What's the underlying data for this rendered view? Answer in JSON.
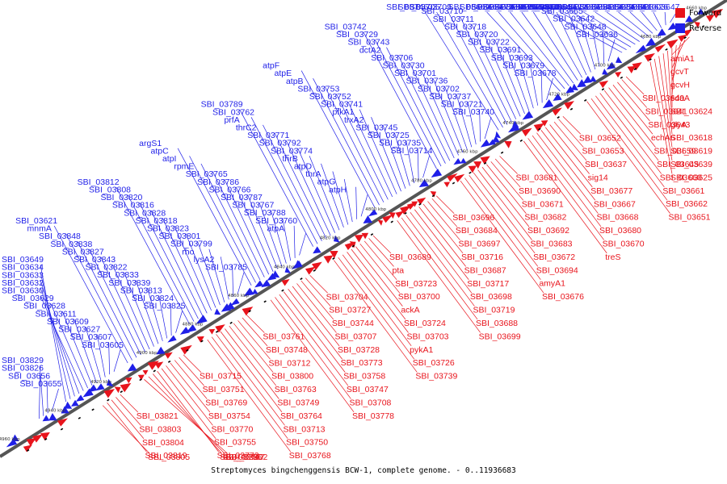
{
  "legend": {
    "forward": "Forward",
    "reverse": "Reverse"
  },
  "colors": {
    "forward": "#e8141c",
    "reverse": "#1f1fe8",
    "backbone": "#555555"
  },
  "caption": "Streptomyces bingchenggensis BCW-1, complete genome. - 0..11936683",
  "kbp_ticks": [
    "4660 kbp",
    "4680 kbp",
    "4700 kbp",
    "4720 kbp",
    "4740 kbp",
    "4760 kbp",
    "4780 kbp",
    "4800 kbp",
    "4820 kbp",
    "4840 kbp",
    "4860 kbp",
    "4880 kbp",
    "4900 kbp",
    "4920 kbp",
    "4940 kbp",
    "4960 kbp"
  ],
  "reverse_genes": [
    "SBI_03647",
    "SBI_03626",
    "SBI_03610",
    "SBI_03638",
    "SBI_03623",
    "SBI_03613",
    "SBI_03654",
    "SBI_03635",
    "SBI_03622",
    "SBI_03646",
    "SBI_03631",
    "SBI_03644",
    "SBI_03636",
    "SBI_03648",
    "SBI_03642",
    "SBI_03665",
    "SBI_03664",
    "SBI_03663",
    "SBI_03650",
    "SBI_03675",
    "SBI_03658",
    "SBI_03673",
    "SBI_03666",
    "SBI_03669",
    "SBI_03678",
    "SBI_03679",
    "SBI_03693",
    "SBI_03691",
    "SBI_03722",
    "SBI_03720",
    "SBI_03718",
    "SBI_03711",
    "SBI_03710",
    "SBI_03709",
    "SBI_03705",
    "SBI_03746",
    "SBI_03740",
    "SBI_03721",
    "SBI_03737",
    "SBI_03702",
    "SBI_03736",
    "SBI_03701",
    "SBI_03730",
    "SBI_03706",
    "dctA2",
    "SBI_03743",
    "SBI_03729",
    "SBI_03742",
    "SBI_03714",
    "SBI_03735",
    "SBI_03725",
    "SBI_03745",
    "trxA2",
    "pfkA1",
    "SBI_03741",
    "SBI_03752",
    "SBI_03753",
    "atpB",
    "atpE",
    "atpF",
    "atpH",
    "atpG",
    "thrA",
    "atpD",
    "thrB",
    "SBI_03774",
    "SBI_03792",
    "SBI_03771",
    "thrC2",
    "prfA",
    "SBI_03762",
    "SBI_03789",
    "atpA",
    "SBI_03760",
    "SBI_03788",
    "SBI_03767",
    "SBI_03787",
    "SBI_03766",
    "SBI_03786",
    "SBI_03765",
    "rpmE",
    "atpI",
    "atpC",
    "argS1",
    "SBI_03785",
    "lysA2",
    "rho",
    "SBI_03799",
    "SBI_03801",
    "SBI_03823",
    "SBI_03818",
    "SBI_03828",
    "SBI_03816",
    "SBI_03820",
    "SBI_03808",
    "SBI_03812",
    "SBI_03825",
    "SBI_03824",
    "SBI_03813",
    "SBI_03839",
    "SBI_03833",
    "SBI_03822",
    "SBI_03843",
    "SBI_03827",
    "SBI_03838",
    "SBI_03848",
    "mnmA",
    "SBI_03621",
    "SBI_03605",
    "SBI_03607",
    "SBI_03627",
    "SBI_03609",
    "SBI_03611",
    "SBI_03628",
    "SBI_03629",
    "SBI_03630",
    "SBI_03632",
    "SBI_03633",
    "SBI_03634",
    "SBI_03649",
    "SBI_03655",
    "SBI_03656",
    "SBI_03826",
    "SBI_03829"
  ],
  "forward_genes": [
    "amiA1",
    "gcvT",
    "gcvH",
    "sdaA",
    "SBI_03624",
    "glyA",
    "SBI_03618",
    "SBI_03619",
    "SBI_03639",
    "SBI_03625",
    "SBI_03640",
    "SBI_03641",
    "SBI_03643",
    "echA6",
    "SBI_03659",
    "SBI_03645",
    "SBI_03660",
    "SBI_03661",
    "SBI_03662",
    "SBI_03651",
    "SBI_03652",
    "SBI_03653",
    "SBI_03637",
    "sig14",
    "SBI_03677",
    "SBI_03667",
    "SBI_03668",
    "SBI_03680",
    "SBI_03670",
    "treS",
    "SBI_03681",
    "SBI_03690",
    "SBI_03671",
    "SBI_03682",
    "SBI_03692",
    "SBI_03683",
    "SBI_03672",
    "SBI_03694",
    "amyA1",
    "SBI_03676",
    "SBI_03696",
    "SBI_03684",
    "SBI_03697",
    "SBI_03716",
    "SBI_03687",
    "SBI_03717",
    "SBI_03698",
    "SBI_03719",
    "SBI_03688",
    "SBI_03699",
    "SBI_03689",
    "pta",
    "SBI_03723",
    "SBI_03700",
    "ackA",
    "SBI_03724",
    "SBI_03703",
    "pykA1",
    "SBI_03726",
    "SBI_03739",
    "SBI_03704",
    "SBI_03727",
    "SBI_03744",
    "SBI_03707",
    "SBI_03728",
    "SBI_03773",
    "SBI_03758",
    "SBI_03747",
    "SBI_03708",
    "SBI_03778",
    "SBI_03761",
    "SBI_03748",
    "SBI_03712",
    "SBI_03800",
    "SBI_03763",
    "SBI_03749",
    "SBI_03764",
    "SBI_03713",
    "SBI_03750",
    "SBI_03768",
    "SBI_03715",
    "SBI_03751",
    "SBI_03769",
    "SBI_03754",
    "SBI_03770",
    "SBI_03755",
    "SBI_03772",
    "SBI_03756",
    "SBI_03757",
    "SBI_03802",
    "SBI_03821",
    "SBI_03803",
    "SBI_03804",
    "SBI_03819",
    "SBI_03805"
  ]
}
